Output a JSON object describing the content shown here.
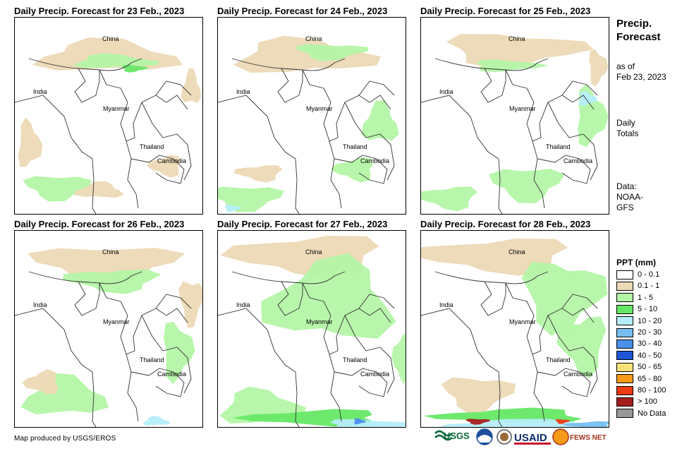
{
  "panels": [
    {
      "title": "Daily Precip. Forecast for 23 Feb., 2023"
    },
    {
      "title": "Daily Precip. Forecast for 24 Feb., 2023"
    },
    {
      "title": "Daily Precip. Forecast for 25 Feb., 2023"
    },
    {
      "title": "Daily Precip. Forecast for 26 Feb., 2023"
    },
    {
      "title": "Daily Precip. Forecast for 27 Feb., 2023"
    },
    {
      "title": "Daily Precip. Forecast for 28 Feb., 2023"
    }
  ],
  "map_labels": {
    "china": "China",
    "india": "India",
    "myanmar": "Myanmar",
    "thailand": "Thailand",
    "cambodia": "Cambodia"
  },
  "sidebar": {
    "title_line1": "Precip.",
    "title_line2": "Forecast",
    "asof_line1": "as of",
    "asof_line2": "Feb 23, 2023",
    "daily_line1": "Daily",
    "daily_line2": "Totals",
    "data_line1": "Data:",
    "data_line2": "NOAA-",
    "data_line3": "GFS"
  },
  "legend": {
    "title": "PPT (mm)",
    "items": [
      {
        "label": "0 - 0.1",
        "color": "#ffffff"
      },
      {
        "label": "0.1 - 1",
        "color": "#ecd9b5"
      },
      {
        "label": "1 - 5",
        "color": "#b4f5a6"
      },
      {
        "label": "5 - 10",
        "color": "#66e866"
      },
      {
        "label": "10 - 20",
        "color": "#b5eef8"
      },
      {
        "label": "20 - 30",
        "color": "#77bff0"
      },
      {
        "label": "30 - 40",
        "color": "#4a90e8"
      },
      {
        "label": "40 - 50",
        "color": "#1f56d8"
      },
      {
        "label": "50 - 65",
        "color": "#f7e27a"
      },
      {
        "label": "65 - 80",
        "color": "#f59a19"
      },
      {
        "label": "80 - 100",
        "color": "#ee3a15"
      },
      {
        "label": "> 100",
        "color": "#a51e1e"
      },
      {
        "label": "No Data",
        "color": "#999999"
      }
    ]
  },
  "credit": "Map produced by USGS/EROS",
  "logos": {
    "usgs": "USGS",
    "usaid": "USAID",
    "fewsnet": "FEWS NET"
  }
}
